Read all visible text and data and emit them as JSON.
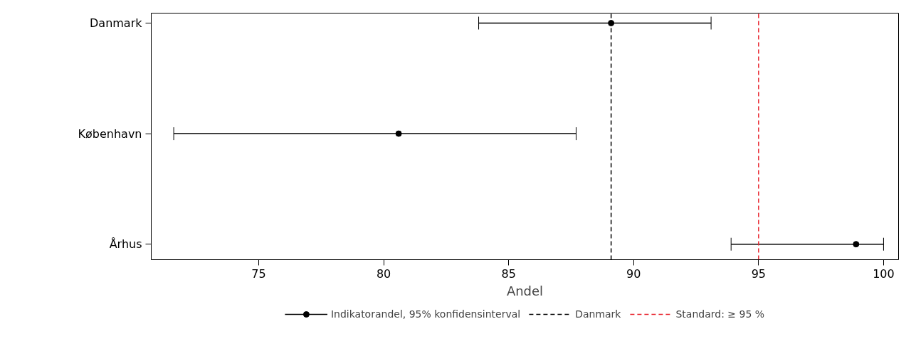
{
  "chart_data": {
    "type": "scatter",
    "orientation": "horizontal",
    "xlabel": "Andel",
    "categories": [
      "Danmark",
      "København",
      "Århus"
    ],
    "series": [
      {
        "name": "Indikatorandel, 95% konfidensinterval",
        "color": "#000000",
        "values": [
          89.1,
          80.6,
          98.9
        ],
        "errors": [
          [
            83.8,
            93.1
          ],
          [
            71.6,
            87.7
          ],
          [
            93.9,
            100
          ]
        ]
      }
    ],
    "xlim": [
      70.7,
      100.6
    ],
    "xticks": [
      75,
      80,
      85,
      90,
      95,
      100
    ],
    "ref_lines": [
      {
        "axis": "x",
        "value": 89.1,
        "label": "Danmark",
        "color": "#000000",
        "line_style": "dashed"
      },
      {
        "axis": "x",
        "value": 95,
        "label": "Standard: ≥ 95 %",
        "color": "#e8202a",
        "line_style": "dashed"
      }
    ],
    "marker": "circle",
    "legend": "bottom",
    "grid": false
  }
}
